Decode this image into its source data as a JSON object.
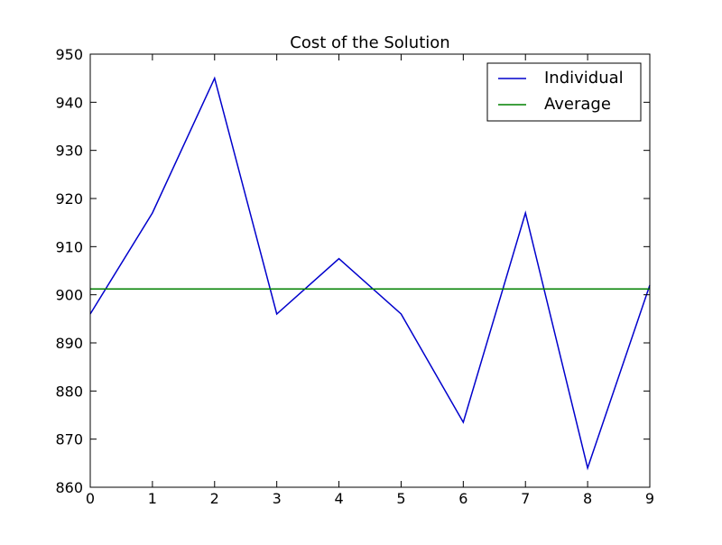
{
  "chart_data": {
    "type": "line",
    "title": "Cost of the Solution",
    "xlabel": "",
    "ylabel": "",
    "xlim": [
      0,
      9
    ],
    "ylim": [
      860,
      950
    ],
    "x_ticks": [
      "0",
      "1",
      "2",
      "3",
      "4",
      "5",
      "6",
      "7",
      "8",
      "9"
    ],
    "y_ticks": [
      "860",
      "870",
      "880",
      "890",
      "900",
      "910",
      "920",
      "930",
      "940",
      "950"
    ],
    "x_tick_values": [
      0,
      1,
      2,
      3,
      4,
      5,
      6,
      7,
      8,
      9
    ],
    "y_tick_values": [
      860,
      870,
      880,
      890,
      900,
      910,
      920,
      930,
      940,
      950
    ],
    "grid": false,
    "legend_position": "top-right",
    "x": [
      0,
      1,
      2,
      3,
      4,
      5,
      6,
      7,
      8,
      9
    ],
    "series": [
      {
        "name": "Individual",
        "color": "#0000cc",
        "values": [
          896,
          917,
          945,
          896,
          907.5,
          896,
          873.5,
          917,
          864,
          902
        ]
      },
      {
        "name": "Average",
        "color": "#008000",
        "values": [
          901.2,
          901.2,
          901.2,
          901.2,
          901.2,
          901.2,
          901.2,
          901.2,
          901.2,
          901.2
        ]
      }
    ]
  }
}
